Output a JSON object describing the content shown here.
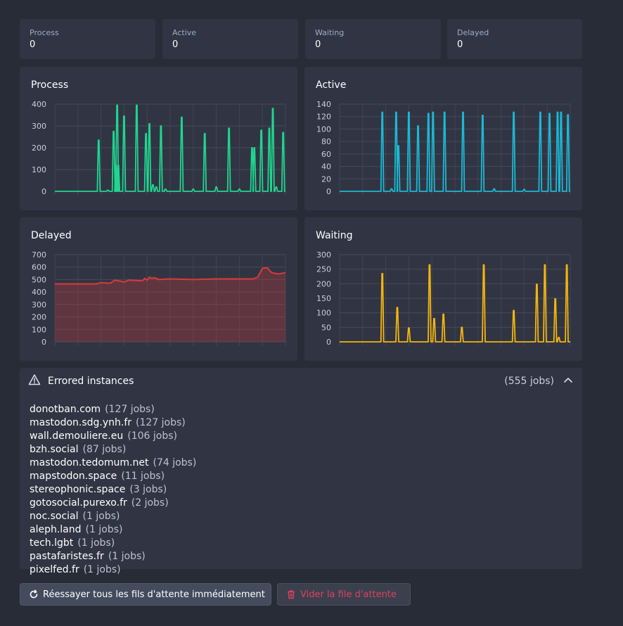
{
  "stats": [
    {
      "label": "Process",
      "value": "0"
    },
    {
      "label": "Active",
      "value": "0"
    },
    {
      "label": "Waiting",
      "value": "0"
    },
    {
      "label": "Delayed",
      "value": "0"
    }
  ],
  "colors": {
    "process": "#1fd68f",
    "active": "#1bb9d4",
    "delayed": "#d93a3a",
    "waiting": "#f5b50e"
  },
  "charts": [
    {
      "id": "process",
      "title": "Process",
      "type": "line",
      "yticks": [
        "400",
        "300",
        "200",
        "100",
        "0"
      ],
      "ylim": [
        0,
        400
      ],
      "spikes": [
        [
          0.19,
          235
        ],
        [
          0.23,
          5
        ],
        [
          0.255,
          275
        ],
        [
          0.265,
          120
        ],
        [
          0.27,
          395
        ],
        [
          0.275,
          120
        ],
        [
          0.3,
          345
        ],
        [
          0.355,
          395
        ],
        [
          0.395,
          265
        ],
        [
          0.41,
          310
        ],
        [
          0.425,
          30
        ],
        [
          0.44,
          20
        ],
        [
          0.46,
          300
        ],
        [
          0.48,
          10
        ],
        [
          0.55,
          340
        ],
        [
          0.6,
          10
        ],
        [
          0.65,
          265
        ],
        [
          0.7,
          20
        ],
        [
          0.755,
          290
        ],
        [
          0.8,
          10
        ],
        [
          0.855,
          200
        ],
        [
          0.865,
          200
        ],
        [
          0.895,
          280
        ],
        [
          0.93,
          290
        ],
        [
          0.945,
          380
        ],
        [
          0.96,
          20
        ],
        [
          0.99,
          270
        ]
      ]
    },
    {
      "id": "active",
      "title": "Active",
      "type": "line",
      "yticks": [
        "140",
        "120",
        "100",
        "80",
        "60",
        "40",
        "20",
        "0"
      ],
      "ylim": [
        0,
        140
      ],
      "spikes": [
        [
          0.185,
          127
        ],
        [
          0.225,
          4
        ],
        [
          0.245,
          127
        ],
        [
          0.255,
          73
        ],
        [
          0.3,
          127
        ],
        [
          0.34,
          105
        ],
        [
          0.385,
          125
        ],
        [
          0.405,
          127
        ],
        [
          0.455,
          127
        ],
        [
          0.535,
          127
        ],
        [
          0.62,
          122
        ],
        [
          0.67,
          4
        ],
        [
          0.755,
          127
        ],
        [
          0.8,
          3
        ],
        [
          0.87,
          127
        ],
        [
          0.91,
          125
        ],
        [
          0.945,
          127
        ],
        [
          0.96,
          127
        ],
        [
          0.99,
          123
        ]
      ]
    },
    {
      "id": "delayed",
      "title": "Delayed",
      "type": "area",
      "yticks": [
        "700",
        "600",
        "500",
        "400",
        "300",
        "200",
        "100",
        "0"
      ],
      "ylim": [
        0,
        700
      ],
      "curve": [
        [
          0,
          465
        ],
        [
          0.18,
          465
        ],
        [
          0.2,
          475
        ],
        [
          0.24,
          470
        ],
        [
          0.26,
          495
        ],
        [
          0.29,
          485
        ],
        [
          0.3,
          480
        ],
        [
          0.32,
          495
        ],
        [
          0.38,
          490
        ],
        [
          0.39,
          510
        ],
        [
          0.4,
          495
        ],
        [
          0.41,
          520
        ],
        [
          0.42,
          510
        ],
        [
          0.43,
          515
        ],
        [
          0.44,
          510
        ],
        [
          0.45,
          500
        ],
        [
          0.5,
          505
        ],
        [
          0.6,
          500
        ],
        [
          0.7,
          505
        ],
        [
          0.75,
          505
        ],
        [
          0.83,
          505
        ],
        [
          0.86,
          505
        ],
        [
          0.88,
          520
        ],
        [
          0.9,
          590
        ],
        [
          0.92,
          595
        ],
        [
          0.94,
          555
        ],
        [
          0.97,
          545
        ],
        [
          1.0,
          555
        ]
      ]
    },
    {
      "id": "waiting",
      "title": "Waiting",
      "type": "line",
      "yticks": [
        "300",
        "250",
        "200",
        "150",
        "100",
        "50",
        "0"
      ],
      "ylim": [
        0,
        300
      ],
      "spikes": [
        [
          0.185,
          235
        ],
        [
          0.25,
          118
        ],
        [
          0.3,
          48
        ],
        [
          0.39,
          265
        ],
        [
          0.41,
          80
        ],
        [
          0.45,
          95
        ],
        [
          0.53,
          50
        ],
        [
          0.625,
          265
        ],
        [
          0.755,
          108
        ],
        [
          0.855,
          198
        ],
        [
          0.89,
          265
        ],
        [
          0.935,
          148
        ],
        [
          0.95,
          15
        ],
        [
          0.985,
          265
        ]
      ]
    }
  ],
  "errored": {
    "title": "Errored instances",
    "total": "(555 jobs)",
    "items": [
      {
        "domain": "donotban.com",
        "jobs": "(127 jobs)"
      },
      {
        "domain": "mastodon.sdg.ynh.fr",
        "jobs": "(127 jobs)"
      },
      {
        "domain": "wall.demouliere.eu",
        "jobs": "(106 jobs)"
      },
      {
        "domain": "bzh.social",
        "jobs": "(87 jobs)"
      },
      {
        "domain": "mastodon.tedomum.net",
        "jobs": "(74 jobs)"
      },
      {
        "domain": "mapstodon.space",
        "jobs": "(11 jobs)"
      },
      {
        "domain": "stereophonic.space",
        "jobs": "(3 jobs)"
      },
      {
        "domain": "gotosocial.purexo.fr",
        "jobs": "(2 jobs)"
      },
      {
        "domain": "noc.social",
        "jobs": "(1 jobs)"
      },
      {
        "domain": "aleph.land",
        "jobs": "(1 jobs)"
      },
      {
        "domain": "tech.lgbt",
        "jobs": "(1 jobs)"
      },
      {
        "domain": "pastafaristes.fr",
        "jobs": "(1 jobs)"
      },
      {
        "domain": "pixelfed.fr",
        "jobs": "(1 jobs)"
      }
    ]
  },
  "actions": {
    "retry_label": "Réessayer tous les fils d'attente immédiatement",
    "clear_label": "Vider la file d'attente",
    "retry_icon": "refresh-icon",
    "clear_icon": "trash-icon"
  }
}
